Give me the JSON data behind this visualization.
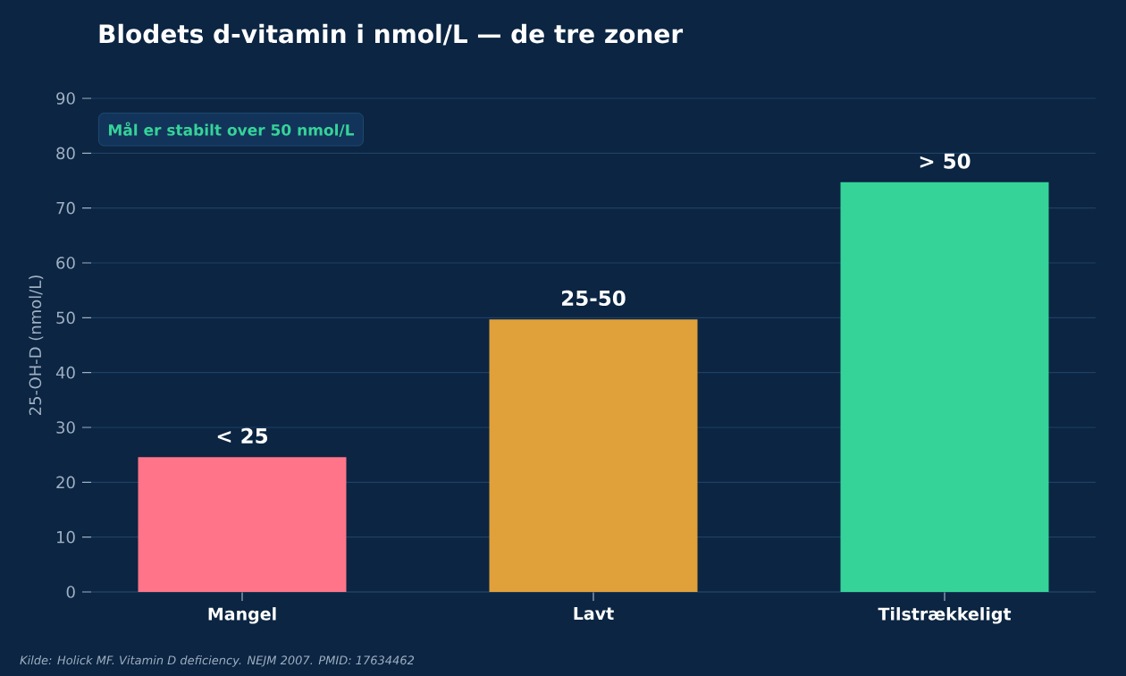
{
  "chart_data": {
    "type": "bar",
    "title": "Blodets d-vitamin i nmol/L — de tre zoner",
    "ylabel": "25-OH-D (nmol/L)",
    "categories": [
      "Mangel",
      "Lavt",
      "Tilstrækkeligt"
    ],
    "values": [
      24.6,
      49.7,
      74.7
    ],
    "colors": [
      "#ff7489",
      "#e0a03a",
      "#36d399"
    ],
    "value_labels": [
      "< 25",
      "25-50",
      "> 50"
    ],
    "ylim": [
      0,
      90
    ],
    "yticks": [
      0,
      10,
      20,
      30,
      40,
      50,
      60,
      70,
      80,
      90
    ],
    "grid": "y",
    "annotations": [
      "Mål er stabilt over 50 nmol/L",
      "Kilde: Holick MF. Vitamin D deficiency. NEJM 2007. PMID: 17634462"
    ]
  }
}
